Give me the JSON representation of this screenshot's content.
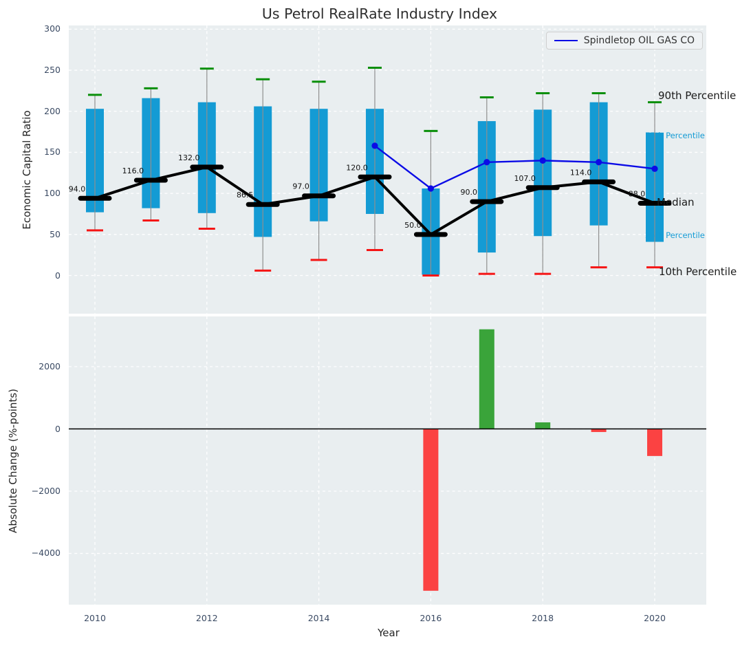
{
  "title": "Us Petrol RealRate Industry Index",
  "colors": {
    "plot_bg": "#e9eef0",
    "grid": "#ffffff",
    "box": "#149bd4",
    "whisker": "#8f8f8f",
    "p90_cap": "#0a8f0a",
    "p10_cap": "#f51515",
    "median_line": "#000000",
    "company_line": "#0b0be6",
    "bar_positive": "#3aa43a",
    "bar_negative": "#fb4242",
    "tick_text": "#3a4a63",
    "annotation_black": "#1a1a1a",
    "annotation_cyan": "#149bd4",
    "zero_line": "#000000"
  },
  "chart_data": [
    {
      "type": "boxwhisker+line",
      "name": "economic-capital-ratio-panel",
      "ylabel": "Economic Capital Ratio",
      "ylim": [
        -46,
        305
      ],
      "grid": true,
      "yticks": [
        "300",
        "250",
        "200",
        "150",
        "100",
        "50",
        "0"
      ],
      "ytick_values": [
        300,
        250,
        200,
        150,
        100,
        50,
        0
      ],
      "years": [
        2010,
        2011,
        2012,
        2013,
        2014,
        2015,
        2016,
        2017,
        2018,
        2019,
        2020
      ],
      "p90": [
        220,
        228,
        252,
        239,
        236,
        253,
        176,
        217,
        222,
        222,
        211
      ],
      "p75": [
        203,
        216,
        211,
        206,
        203,
        203,
        106,
        188,
        202,
        211,
        174
      ],
      "median": [
        94,
        116,
        132,
        86.5,
        97,
        120,
        50,
        90,
        107,
        114,
        88
      ],
      "p25": [
        77,
        82,
        76,
        47,
        66,
        75,
        1,
        28,
        48,
        61,
        41
      ],
      "p10": [
        55,
        67,
        57,
        6,
        19,
        31,
        0,
        2,
        2,
        10,
        10
      ],
      "median_labels": [
        "94.0",
        "116.0",
        "132.0",
        "86.5",
        "97.0",
        "120.0",
        "50.0",
        "90.0",
        "107.0",
        "114.0",
        "88.0"
      ],
      "company": {
        "name": "Spindletop OIL GAS CO",
        "years": [
          2015,
          2016,
          2017,
          2018,
          2019,
          2020
        ],
        "values": [
          158,
          106,
          138,
          140,
          138,
          130
        ]
      },
      "annotations": [
        {
          "text": "90th Percentile",
          "value": 219,
          "dx": 5,
          "size": 15,
          "color_key": "annotation_black"
        },
        {
          "text": "75th Percentile",
          "value": 170.5,
          "dx": -14,
          "size": 11.5,
          "color_key": "annotation_cyan"
        },
        {
          "text": "Median",
          "value": 89,
          "dx": 3,
          "size": 15,
          "color_key": "annotation_black"
        },
        {
          "text": "25th Percentile",
          "value": 48.5,
          "dx": -14,
          "size": 11.5,
          "color_key": "annotation_cyan"
        },
        {
          "text": "10th Percentile",
          "value": 4.5,
          "dx": 6,
          "size": 15,
          "color_key": "annotation_black"
        }
      ]
    },
    {
      "type": "bar",
      "name": "absolute-change-panel",
      "ylabel": "Absolute Change (%-points)",
      "xlabel": "Year",
      "ylim": [
        -5650,
        3615
      ],
      "grid": true,
      "yticks": [
        "2000",
        "0",
        "−2000",
        "−4000"
      ],
      "ytick_values": [
        2000,
        0,
        -2000,
        -4000
      ],
      "xticks": [
        2010,
        2012,
        2014,
        2016,
        2018,
        2020
      ],
      "years": [
        2010,
        2011,
        2012,
        2013,
        2014,
        2015,
        2016,
        2017,
        2018,
        2019,
        2020
      ],
      "values": [
        0,
        0,
        0,
        0,
        0,
        0,
        -5200,
        3200,
        210,
        -100,
        -870
      ]
    }
  ]
}
